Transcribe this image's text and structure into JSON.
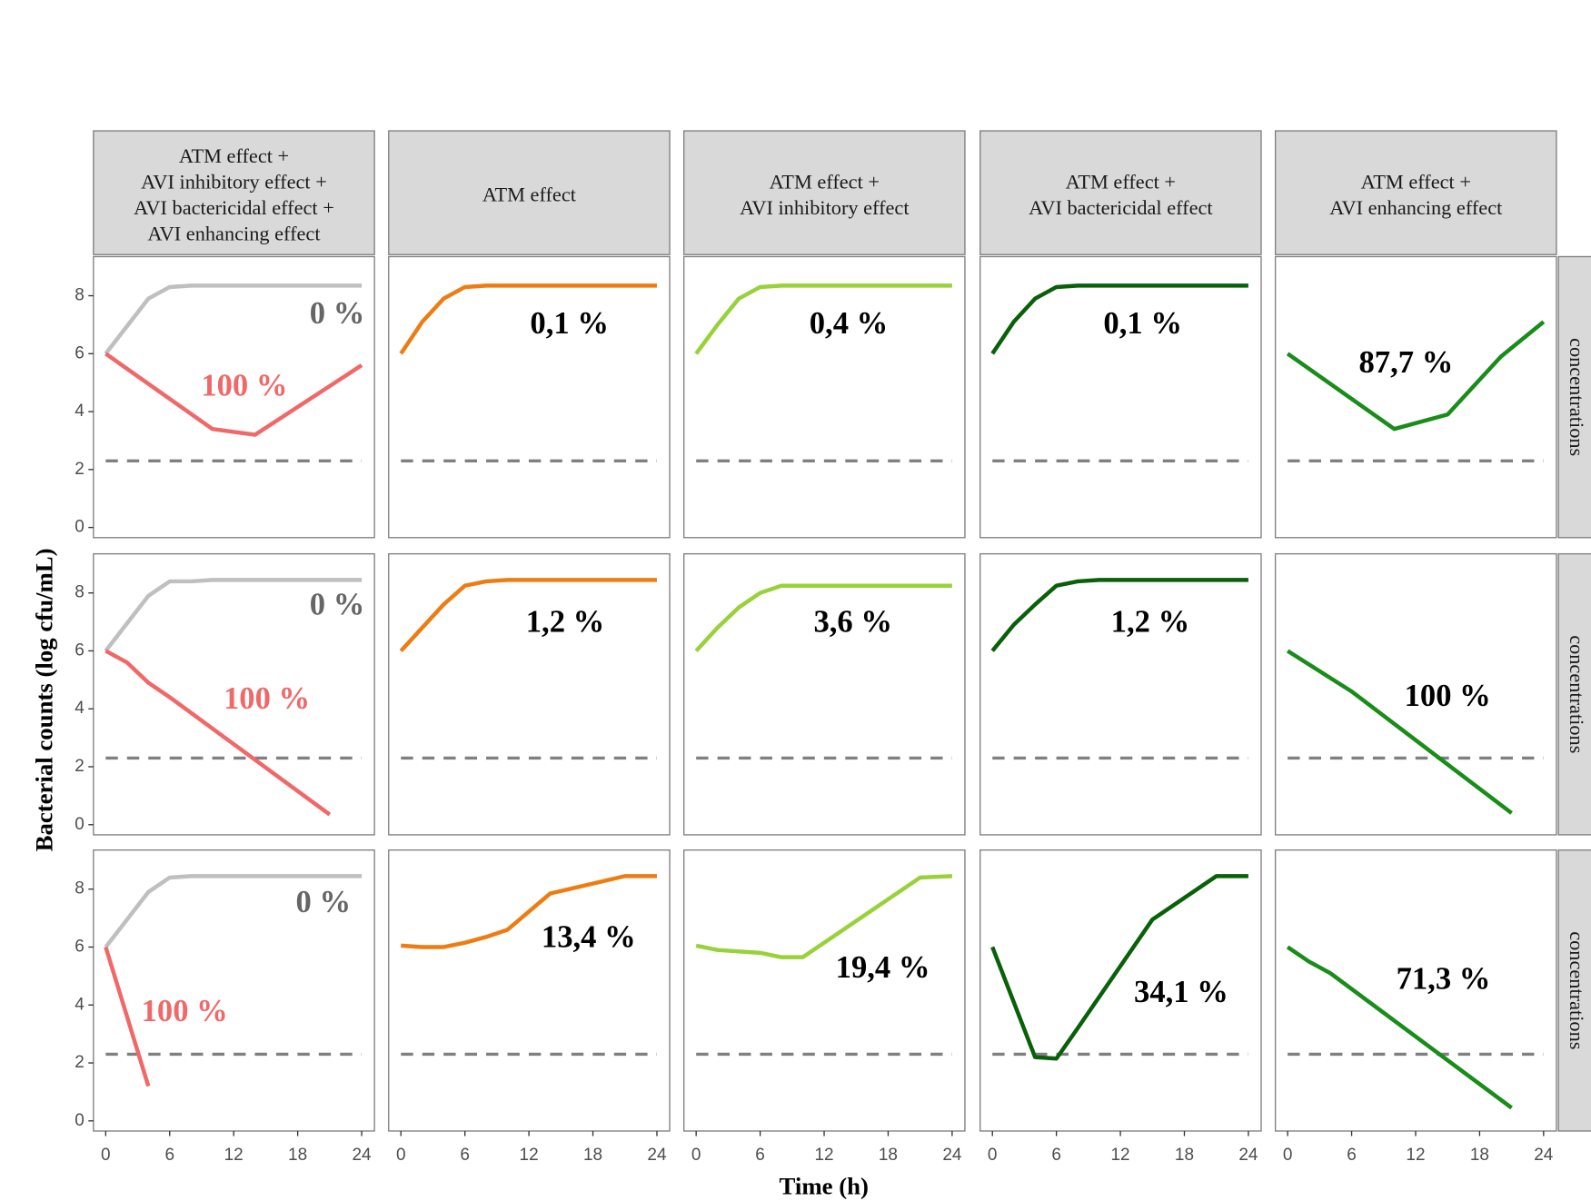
{
  "chart_data": {
    "type": "line",
    "xlabel": "Time (h)",
    "ylabel": "Bacterial counts (log cfu/mL)",
    "xlim": [
      -1.15,
      25.2
    ],
    "ylim": [
      -0.35,
      9.35
    ],
    "xticks": [
      0,
      6,
      12,
      18,
      24
    ],
    "yticks": [
      0,
      2,
      4,
      6,
      8
    ],
    "reference_line": 2.3,
    "reference_color": "#808080",
    "column_strips": [
      [
        "ATM effect +",
        "AVI inhibitory effect +",
        "AVI bactericidal effect +",
        "AVI enhancing effect"
      ],
      [
        "ATM effect"
      ],
      [
        "ATM effect +",
        "AVI inhibitory effect"
      ],
      [
        "ATM effect +",
        "AVI bactericidal effect"
      ],
      [
        "ATM effect +",
        "AVI enhancing effect"
      ]
    ],
    "row_strips": [
      "concentrations",
      "concentrations",
      "concentrations"
    ],
    "panels": [
      {
        "series": [
          {
            "color": "#bfbfbf",
            "x": [
              0,
              4,
              6,
              8,
              24
            ],
            "values": [
              6,
              7.9,
              8.3,
              8.35,
              8.35
            ]
          },
          {
            "color": "#f06868",
            "x": [
              0,
              10,
              14,
              24
            ],
            "values": [
              6,
              3.4,
              3.2,
              5.6
            ]
          }
        ],
        "annotations": [
          {
            "text": "0 %",
            "color": "#666666"
          },
          {
            "text": "100 %",
            "color": "#f06868"
          }
        ]
      },
      {
        "series": [
          {
            "color": "#ed7d13",
            "x": [
              0,
              2,
              4,
              6,
              8,
              24
            ],
            "values": [
              6,
              7.1,
              7.9,
              8.3,
              8.35,
              8.35
            ]
          }
        ],
        "annotations": [
          {
            "text": "0,1 %",
            "color": "#000000"
          }
        ]
      },
      {
        "series": [
          {
            "color": "#99d13a",
            "x": [
              0,
              2,
              4,
              6,
              8,
              24
            ],
            "values": [
              6,
              7,
              7.9,
              8.3,
              8.35,
              8.35
            ]
          }
        ],
        "annotations": [
          {
            "text": "0,4 %",
            "color": "#000000"
          }
        ]
      },
      {
        "series": [
          {
            "color": "#0a600a",
            "x": [
              0,
              2,
              4,
              6,
              8,
              24
            ],
            "values": [
              6,
              7.1,
              7.9,
              8.3,
              8.35,
              8.35
            ]
          }
        ],
        "annotations": [
          {
            "text": "0,1 %",
            "color": "#000000"
          }
        ]
      },
      {
        "series": [
          {
            "color": "#1a8c1a",
            "x": [
              0,
              10,
              15,
              20,
              24
            ],
            "values": [
              6,
              3.4,
              3.9,
              5.9,
              7.1
            ]
          }
        ],
        "annotations": [
          {
            "text": "87,7 %",
            "color": "#000000"
          }
        ]
      },
      {
        "series": [
          {
            "color": "#bfbfbf",
            "x": [
              0,
              4,
              6,
              8,
              10,
              24
            ],
            "values": [
              6,
              7.9,
              8.4,
              8.4,
              8.45,
              8.45
            ]
          },
          {
            "color": "#f06868",
            "x": [
              0,
              2,
              4,
              6,
              21
            ],
            "values": [
              6,
              5.6,
              4.9,
              4.4,
              0.35
            ]
          }
        ],
        "annotations": [
          {
            "text": "0 %",
            "color": "#666666"
          },
          {
            "text": "100 %",
            "color": "#f06868"
          }
        ]
      },
      {
        "series": [
          {
            "color": "#ed7d13",
            "x": [
              0,
              2,
              4,
              6,
              8,
              10,
              24
            ],
            "values": [
              6,
              6.8,
              7.6,
              8.25,
              8.4,
              8.45,
              8.45
            ]
          }
        ],
        "annotations": [
          {
            "text": "1,2 %",
            "color": "#000000"
          }
        ]
      },
      {
        "series": [
          {
            "color": "#99d13a",
            "x": [
              0,
              2,
              4,
              6,
              8,
              24
            ],
            "values": [
              6,
              6.8,
              7.5,
              8,
              8.25,
              8.25
            ]
          }
        ],
        "annotations": [
          {
            "text": "3,6 %",
            "color": "#000000"
          }
        ]
      },
      {
        "series": [
          {
            "color": "#0a600a",
            "x": [
              0,
              2,
              4,
              6,
              8,
              10,
              24
            ],
            "values": [
              6,
              6.9,
              7.6,
              8.25,
              8.4,
              8.45,
              8.45
            ]
          }
        ],
        "annotations": [
          {
            "text": "1,2 %",
            "color": "#000000"
          }
        ]
      },
      {
        "series": [
          {
            "color": "#1a8c1a",
            "x": [
              0,
              6,
              21
            ],
            "values": [
              6,
              4.6,
              0.4
            ]
          }
        ],
        "annotations": [
          {
            "text": "100 %",
            "color": "#000000"
          }
        ]
      },
      {
        "series": [
          {
            "color": "#bfbfbf",
            "x": [
              0,
              4,
              6,
              8,
              24
            ],
            "values": [
              6,
              7.9,
              8.4,
              8.45,
              8.45
            ]
          },
          {
            "color": "#f06868",
            "x": [
              0,
              4
            ],
            "values": [
              6,
              1.2
            ]
          }
        ],
        "annotations": [
          {
            "text": "0 %",
            "color": "#666666"
          },
          {
            "text": "100 %",
            "color": "#f06868"
          }
        ]
      },
      {
        "series": [
          {
            "color": "#ed7d13",
            "x": [
              0,
              2,
              4,
              6,
              8,
              10,
              14,
              21,
              24
            ],
            "values": [
              6.05,
              6,
              6,
              6.15,
              6.35,
              6.6,
              7.85,
              8.45,
              8.45
            ]
          }
        ],
        "annotations": [
          {
            "text": "13,4 %",
            "color": "#000000"
          }
        ]
      },
      {
        "series": [
          {
            "color": "#99d13a",
            "x": [
              0,
              2,
              6,
              8,
              10,
              21,
              24
            ],
            "values": [
              6.05,
              5.9,
              5.8,
              5.65,
              5.65,
              8.4,
              8.45
            ]
          }
        ],
        "annotations": [
          {
            "text": "19,4 %",
            "color": "#000000"
          }
        ]
      },
      {
        "series": [
          {
            "color": "#0a600a",
            "x": [
              0,
              4,
              6,
              8,
              15,
              21,
              24
            ],
            "values": [
              6,
              2.2,
              2.15,
              3.2,
              6.95,
              8.45,
              8.45
            ]
          }
        ],
        "annotations": [
          {
            "text": "34,1 %",
            "color": "#000000"
          }
        ]
      },
      {
        "series": [
          {
            "color": "#1a8c1a",
            "x": [
              0,
              2,
              4,
              21
            ],
            "values": [
              6,
              5.5,
              5.1,
              0.45
            ]
          }
        ],
        "annotations": [
          {
            "text": "71,3 %",
            "color": "#000000"
          }
        ]
      }
    ]
  }
}
